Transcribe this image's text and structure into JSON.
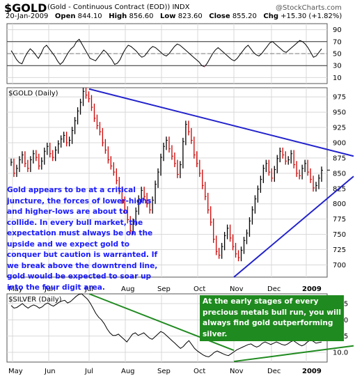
{
  "header": {
    "symbol": "$GOLD",
    "description": "(Gold - Continuous Contract (EOD)) INDX",
    "watermark": "@StockCharts.com",
    "date": "20-Jan-2009",
    "open_label": "Open",
    "open": "844.10",
    "high_label": "High",
    "high": "856.60",
    "low_label": "Low",
    "low": "823.60",
    "close_label": "Close",
    "close": "855.20",
    "chg_label": "Chg",
    "chg": "+15.30 (+1.82%)"
  },
  "panels": {
    "gold_label": "$GOLD (Daily)",
    "silver_label": "$SILVER (Daily)"
  },
  "annotations": {
    "gold_text": "Gold appears to be at a critical\njuncture, the forces of lower-highs\nand higher-lows are about to\ncollide.  In every bull market, the\nexpectation must always be on the\nupside and we expect gold to\nconquer but caution is warranted.  If\nwe break above the downtrend line,\ngold would be expected to soar up\ninto the four digit area.",
    "gold_text_color": "#1a1aff",
    "silver_text": "At the early stages of every\nprecious metals bull run, you will\nalways find gold outperforming\nsilver.",
    "silver_text_color": "#ffffff",
    "silver_box_color": "#1f8a1f"
  },
  "chart_data": [
    {
      "type": "line",
      "name": "indicator",
      "x_tick_labels": [],
      "y_ticks": [
        10,
        30,
        50,
        70,
        90
      ],
      "ylim": [
        0,
        100
      ],
      "reference_lines": [
        30,
        50,
        70
      ],
      "values": [
        55,
        48,
        40,
        35,
        33,
        44,
        52,
        58,
        54,
        48,
        42,
        50,
        60,
        64,
        58,
        52,
        46,
        38,
        32,
        36,
        44,
        52,
        58,
        62,
        70,
        74,
        66,
        58,
        50,
        42,
        40,
        38,
        44,
        50,
        56,
        52,
        46,
        40,
        32,
        34,
        40,
        50,
        58,
        64,
        62,
        58,
        54,
        48,
        44,
        46,
        52,
        58,
        62,
        60,
        56,
        52,
        48,
        46,
        50,
        56,
        62,
        66,
        64,
        60,
        56,
        52,
        48,
        44,
        40,
        36,
        30,
        28,
        34,
        42,
        50,
        56,
        60,
        56,
        52,
        48,
        44,
        40,
        38,
        42,
        48,
        54,
        60,
        64,
        58,
        52,
        48,
        46,
        50,
        56,
        62,
        68,
        70,
        66,
        62,
        58,
        54,
        52,
        56,
        60,
        64,
        68,
        72,
        70,
        66,
        60,
        52,
        44,
        46,
        52,
        58
      ]
    },
    {
      "type": "line",
      "name": "gold",
      "x_tick_labels": [
        "May",
        "Jun",
        "Jul",
        "Aug",
        "Sep",
        "Oct",
        "Nov",
        "Dec",
        "2009"
      ],
      "y_ticks": [
        700,
        725,
        750,
        775,
        800,
        825,
        850,
        875,
        900,
        925,
        950,
        975
      ],
      "ylim": [
        680,
        990
      ],
      "values": [
        868,
        850,
        858,
        872,
        880,
        866,
        858,
        872,
        882,
        876,
        862,
        870,
        886,
        894,
        882,
        876,
        888,
        898,
        906,
        912,
        900,
        904,
        920,
        936,
        952,
        966,
        984,
        978,
        972,
        958,
        940,
        928,
        918,
        900,
        888,
        872,
        862,
        852,
        838,
        822,
        806,
        790,
        774,
        756,
        770,
        788,
        808,
        822,
        812,
        800,
        790,
        806,
        832,
        852,
        876,
        894,
        904,
        890,
        878,
        866,
        848,
        864,
        902,
        930,
        918,
        904,
        880,
        866,
        850,
        830,
        812,
        790,
        770,
        742,
        722,
        716,
        730,
        748,
        760,
        744,
        730,
        718,
        712,
        724,
        740,
        752,
        772,
        790,
        808,
        824,
        840,
        858,
        866,
        852,
        842,
        856,
        874,
        886,
        880,
        870,
        872,
        882,
        864,
        850,
        846,
        858,
        866,
        852,
        840,
        826,
        830,
        842,
        855
      ],
      "trendlines": [
        {
          "from": [
            "Jul",
            988
          ],
          "to": [
            "end",
            878
          ],
          "color": "#2222cc"
        },
        {
          "from": [
            "Nov",
            680
          ],
          "to": [
            "end",
            845
          ],
          "color": "#2222cc"
        }
      ],
      "last_close": 855.2
    },
    {
      "type": "line",
      "name": "silver",
      "x_tick_labels": [
        "May",
        "Jun",
        "Jul",
        "Aug",
        "Sep",
        "Oct",
        "Nov",
        "Dec",
        "2009"
      ],
      "y_ticks": [
        10.0,
        12.5,
        15.0,
        17.5
      ],
      "ylim": [
        8.5,
        19.0
      ],
      "values": [
        17.2,
        16.8,
        16.9,
        17.2,
        17.5,
        17.1,
        16.8,
        17.1,
        17.3,
        17.1,
        16.8,
        17.0,
        17.4,
        17.6,
        17.3,
        17.1,
        17.4,
        17.7,
        17.9,
        18.0,
        17.6,
        17.8,
        18.2,
        18.6,
        18.9,
        19.0,
        18.6,
        18.2,
        17.6,
        16.8,
        16.0,
        15.4,
        15.0,
        14.4,
        13.6,
        13.0,
        12.6,
        12.6,
        12.8,
        12.4,
        12.0,
        11.6,
        12.2,
        12.8,
        13.0,
        12.6,
        12.8,
        13.0,
        12.6,
        12.2,
        12.0,
        12.4,
        12.8,
        13.2,
        13.0,
        12.6,
        12.2,
        11.8,
        11.4,
        11.0,
        10.6,
        10.9,
        11.4,
        11.8,
        11.2,
        10.6,
        10.2,
        9.9,
        9.6,
        9.4,
        9.3,
        9.6,
        10.0,
        10.2,
        10.0,
        9.8,
        9.6,
        9.5,
        9.8,
        10.1,
        10.4,
        10.6,
        10.8,
        11.0,
        11.2,
        11.3,
        11.0,
        10.8,
        11.0,
        11.4,
        11.6,
        11.4,
        11.2,
        11.4,
        11.6,
        11.4,
        11.2,
        11.1,
        11.3,
        11.6,
        11.8,
        11.5,
        11.2,
        11.0,
        11.2,
        11.6,
        11.9,
        11.7,
        11.4,
        11.5,
        11.6
      ],
      "trendlines": [
        {
          "from": [
            "Jul",
            19.0
          ],
          "to": [
            "Nov",
            10.3
          ],
          "color": "#1f8a1f"
        },
        {
          "from": [
            "Nov",
            8.6
          ],
          "to": [
            "end",
            11.0
          ],
          "color": "#1f8a1f"
        }
      ]
    }
  ]
}
